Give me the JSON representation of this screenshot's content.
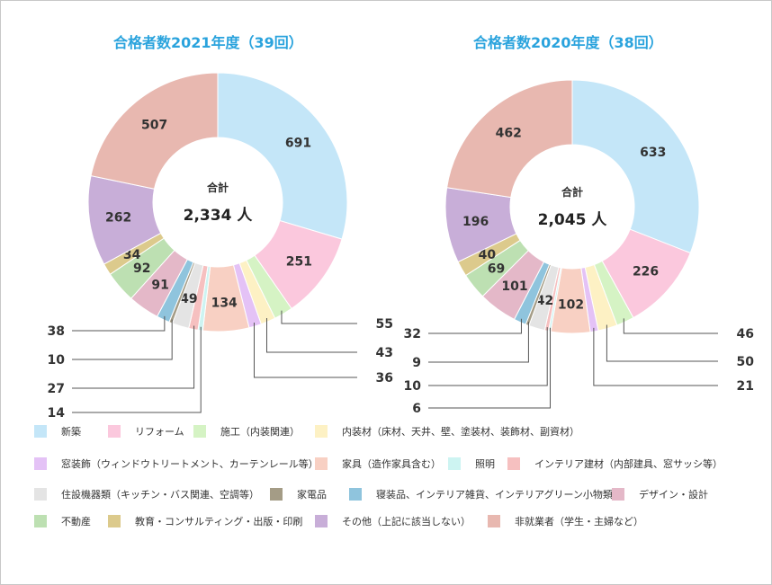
{
  "chart_data": [
    {
      "type": "pie",
      "title": "合格者数2021年度（39回）",
      "center_label": "合計",
      "center_value": "2,334 人",
      "categories": [
        "新築",
        "リフォーム",
        "施工（内装関連）",
        "内装材（床材、天井、壁、塗装材、装飾材、副資材）",
        "窓装飾（ウィンドウトリートメント、カーテンレール等）",
        "家具（造作家具含む）",
        "照明",
        "インテリア建材（内部建具、窓サッシ等）",
        "住設機器類（キッチン・バス関連、空調等）",
        "家電品",
        "寝装品、インテリア雑貨、インテリアグリーン小物類",
        "デザイン・設計",
        "不動産",
        "教育・コンサルティング・出版・印刷",
        "その他（上記に該当しない）",
        "非就業者（学生・主婦など）"
      ],
      "values": [
        691,
        251,
        55,
        43,
        36,
        134,
        14,
        27,
        49,
        10,
        38,
        91,
        92,
        34,
        262,
        507
      ],
      "labels": [
        "691",
        "251",
        "55",
        "43",
        "36",
        "134",
        "14",
        "27",
        "49",
        "10",
        "38",
        "91",
        "92",
        "34",
        "262",
        "507"
      ]
    },
    {
      "type": "pie",
      "title": "合格者数2020年度（38回）",
      "center_label": "合計",
      "center_value": "2,045 人",
      "categories": [
        "新築",
        "リフォーム",
        "施工（内装関連）",
        "内装材（床材、天井、壁、塗装材、装飾材、副資材）",
        "窓装飾（ウィンドウトリートメント、カーテンレール等）",
        "家具（造作家具含む）",
        "照明",
        "インテリア建材（内部建具、窓サッシ等）",
        "住設機器類（キッチン・バス関連、空調等）",
        "家電品",
        "寝装品、インテリア雑貨、インテリアグリーン小物類",
        "デザイン・設計",
        "不動産",
        "教育・コンサルティング・出版・印刷",
        "その他（上記に該当しない）",
        "非就業者（学生・主婦など）"
      ],
      "values": [
        633,
        226,
        46,
        50,
        21,
        102,
        6,
        10,
        42,
        9,
        32,
        101,
        69,
        40,
        196,
        462
      ],
      "labels": [
        "633",
        "226",
        "46",
        "50",
        "21",
        "102",
        "6",
        "10",
        "42",
        "9",
        "32",
        "101",
        "69",
        "40",
        "196",
        "462"
      ]
    }
  ],
  "colors": [
    "#c4e6f8",
    "#fbc8dd",
    "#d5f3c4",
    "#fdf1c4",
    "#e4c2f6",
    "#f8d0c3",
    "#cdf4f2",
    "#f6c0c0",
    "#e4e4e4",
    "#a49c86",
    "#8fc4dd",
    "#e4b8c8",
    "#bde0b2",
    "#dcca8c",
    "#c8aed8",
    "#e8b8b0"
  ],
  "legend": {
    "items": [
      "新築",
      "リフォーム",
      "施工（内装関連）",
      "内装材（床材、天井、壁、塗装材、装飾材、副資材）",
      "窓装飾（ウィンドウトリートメント、カーテンレール等）",
      "家具（造作家具含む）",
      "照明",
      "インテリア建材（内部建具、窓サッシ等）",
      "住設機器類（キッチン・バス関連、空調等）",
      "家電品",
      "寝装品、インテリア雑貨、インテリアグリーン小物類",
      "デザイン・設計",
      "不動産",
      "教育・コンサルティング・出版・印刷",
      "その他（上記に該当しない）",
      "非就業者（学生・主婦など）"
    ]
  }
}
